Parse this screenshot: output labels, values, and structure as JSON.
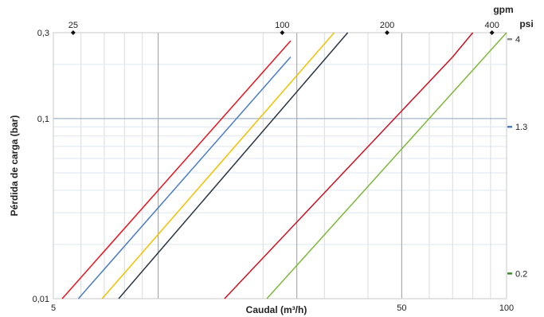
{
  "chart_data": {
    "type": "line",
    "xlabel": "Caudal (m³/h)",
    "ylabel": "Pérdida de carga (bar)",
    "x_scale": "log",
    "y_scale": "log",
    "xlim": [
      5,
      100
    ],
    "ylim": [
      0.01,
      0.3
    ],
    "x_ticks": [
      {
        "value": 5,
        "label": "5"
      },
      {
        "value": 50,
        "label": "50"
      },
      {
        "value": 100,
        "label": "100"
      }
    ],
    "y_ticks": [
      {
        "value": 0.01,
        "label": "0,01"
      },
      {
        "value": 0.1,
        "label": "0,1"
      },
      {
        "value": 0.3,
        "label": "0,3"
      }
    ],
    "top_axis": {
      "unit_label": "gpm",
      "ticks": [
        {
          "label": "25",
          "x": 5.7
        },
        {
          "label": "100",
          "x": 22.7
        },
        {
          "label": "200",
          "x": 45.4
        },
        {
          "label": "400",
          "x": 90.8
        }
      ]
    },
    "right_axis": {
      "unit_label": "psi",
      "ticks": [
        {
          "label": "4",
          "y": 0.276,
          "color": "#888888"
        },
        {
          "label": "1.3",
          "y": 0.09,
          "color": "#4a7cc4"
        },
        {
          "label": "0.2",
          "y": 0.0138,
          "color": "#3d8c2e"
        }
      ]
    },
    "grid": true,
    "series": [
      {
        "color": "#e8141e",
        "points": [
          [
            5.3,
            0.01
          ],
          [
            24,
            0.27
          ]
        ]
      },
      {
        "color": "#4a7cc4",
        "points": [
          [
            5.9,
            0.01
          ],
          [
            24,
            0.22
          ]
        ]
      },
      {
        "color": "#f2c200",
        "points": [
          [
            6.9,
            0.01
          ],
          [
            32,
            0.3
          ]
        ]
      },
      {
        "color": "#2b3544",
        "points": [
          [
            7.7,
            0.01
          ],
          [
            35,
            0.3
          ]
        ]
      },
      {
        "color": "#cc1020",
        "points": [
          [
            15.5,
            0.01
          ],
          [
            70,
            0.22
          ],
          [
            80,
            0.3
          ]
        ]
      },
      {
        "color": "#7db83a",
        "points": [
          [
            20.5,
            0.01
          ],
          [
            100,
            0.3
          ]
        ]
      }
    ]
  }
}
